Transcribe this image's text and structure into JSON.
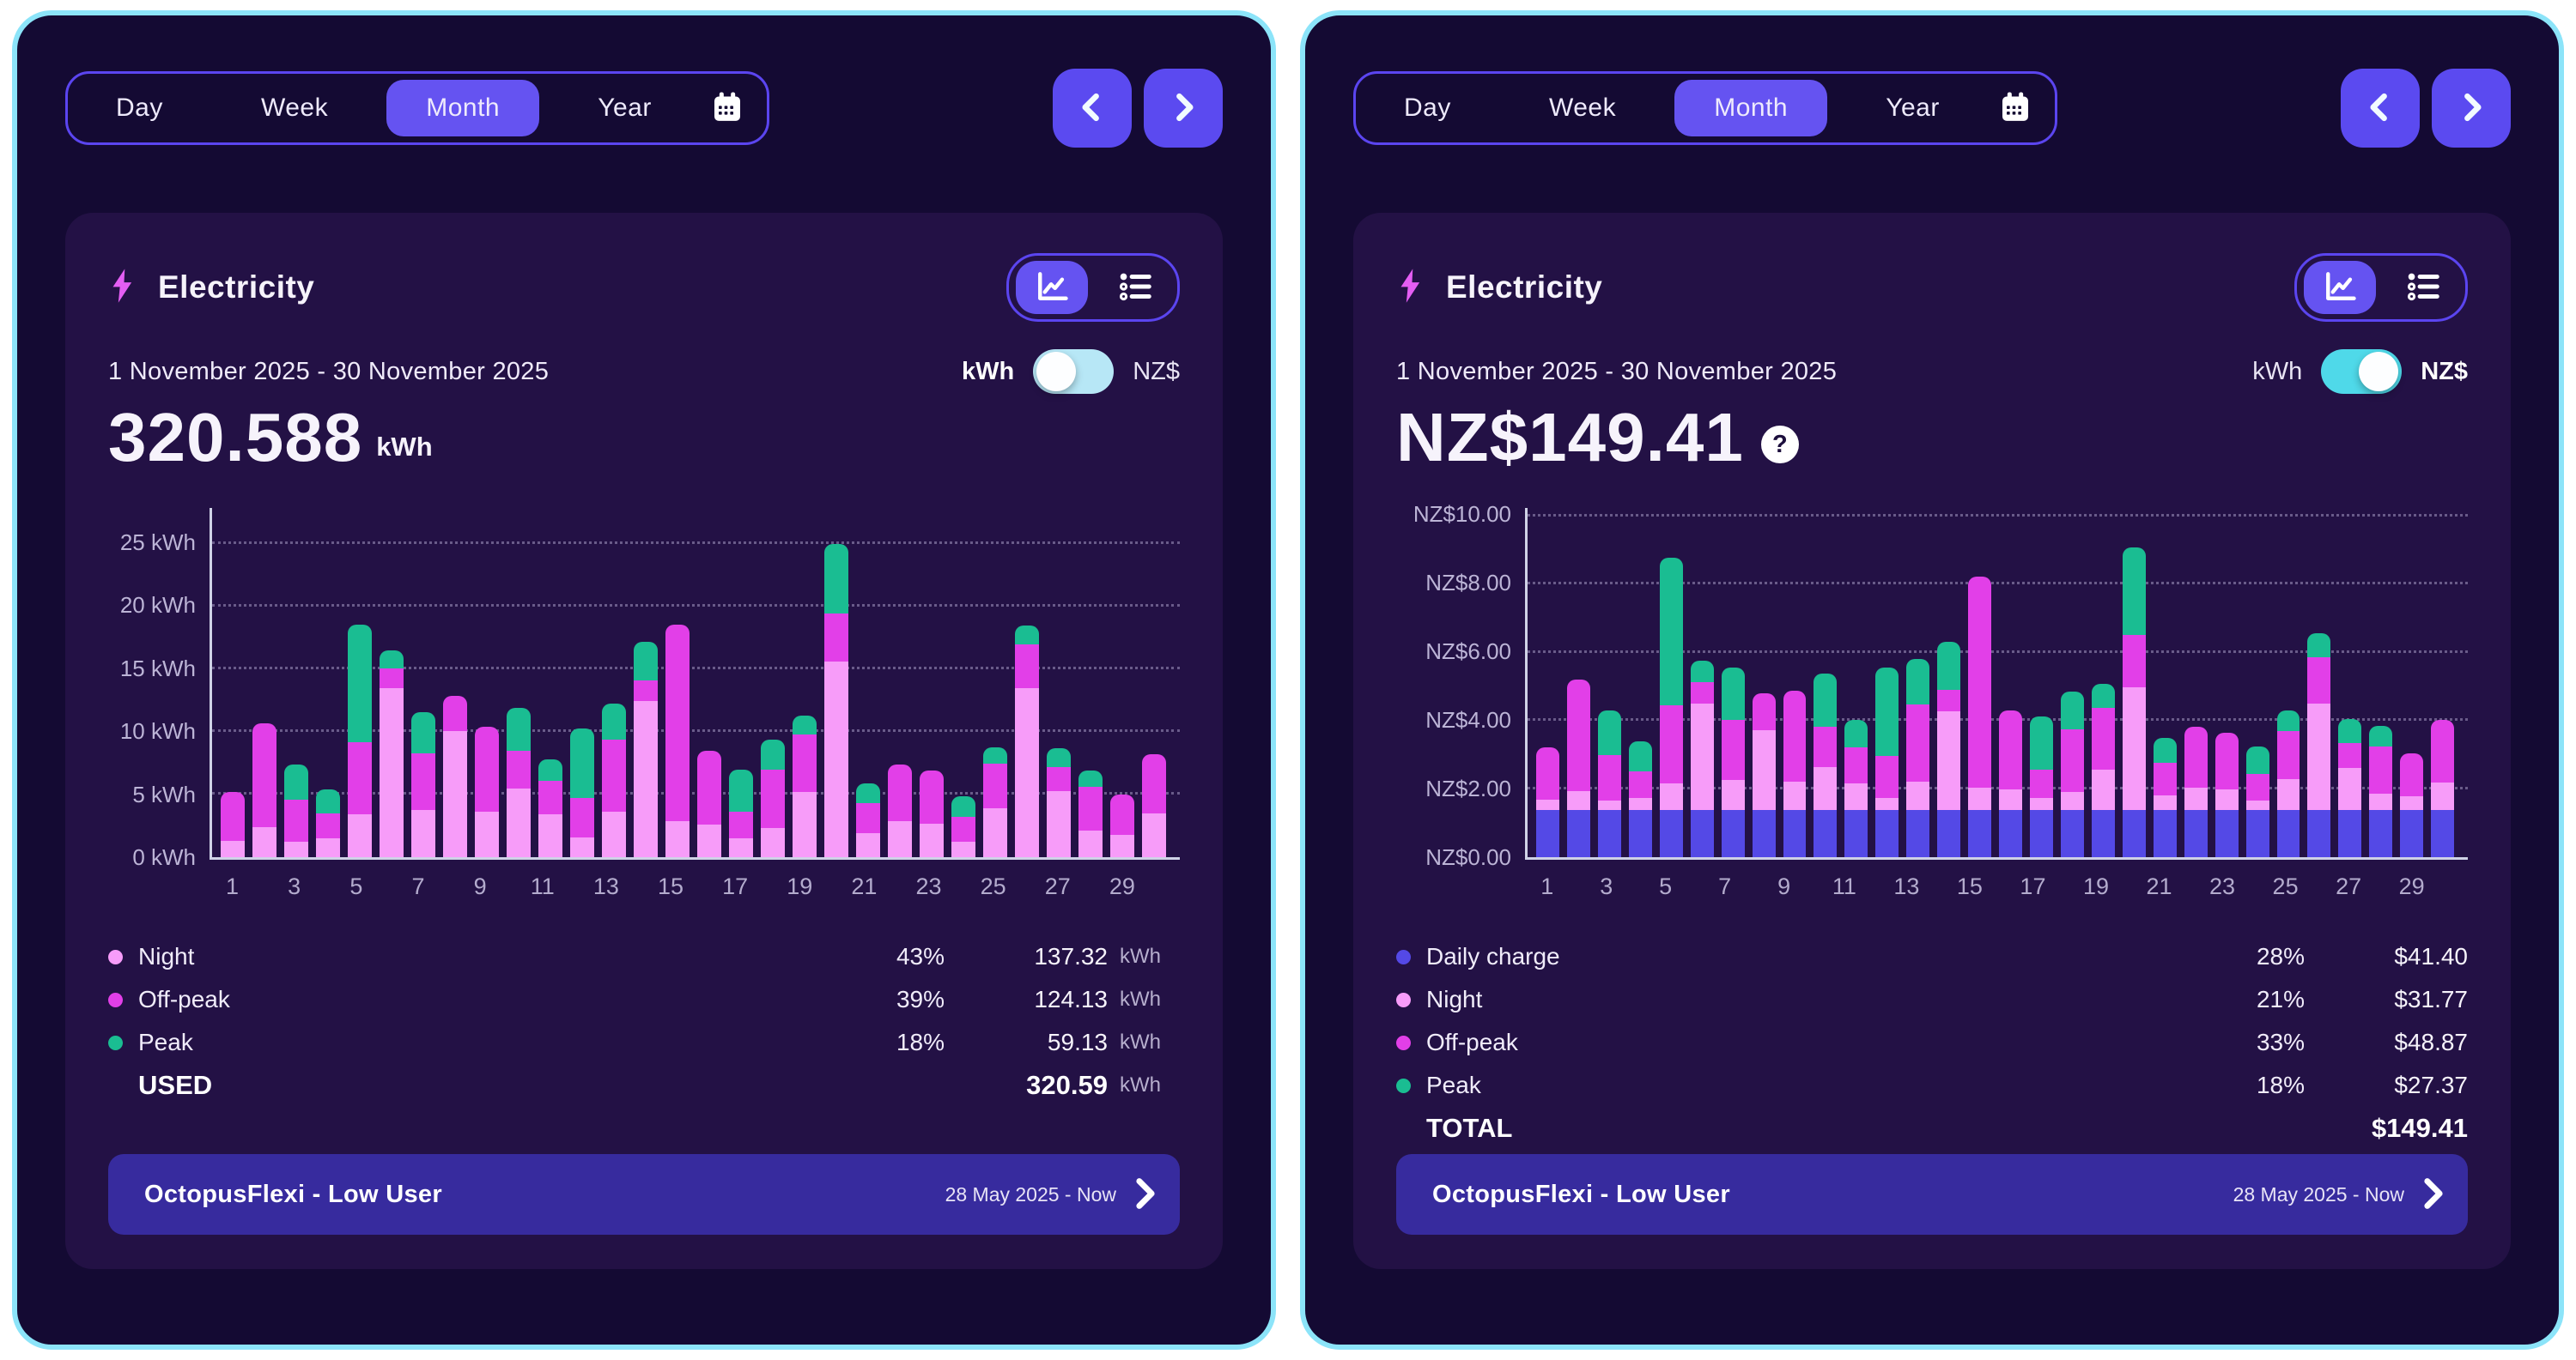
{
  "panels": [
    {
      "tabs": [
        {
          "label": "Day"
        },
        {
          "label": "Week"
        },
        {
          "label": "Month"
        },
        {
          "label": "Year"
        }
      ],
      "active_tab": "Month",
      "title": "Electricity",
      "period": "1 November 2025 - 30 November 2025",
      "unit_toggle": {
        "kwh": "kWh",
        "nzd": "NZ$",
        "active": "kWh"
      },
      "headline": {
        "value": "320.588",
        "unit": "kWh"
      },
      "legend": [
        {
          "label": "Night",
          "percent": "43%",
          "value": "137.32",
          "unit": "kWh",
          "color": "#f79cf9"
        },
        {
          "label": "Off-peak",
          "percent": "39%",
          "value": "124.13",
          "unit": "kWh",
          "color": "#e23fe8"
        },
        {
          "label": "Peak",
          "percent": "18%",
          "value": "59.13",
          "unit": "kWh",
          "color": "#1abd92"
        }
      ],
      "total": {
        "label": "USED",
        "value": "320.59",
        "unit": "kWh"
      },
      "plan": {
        "name": "OctopusFlexi - Low User",
        "range": "28 May 2025 - Now"
      }
    },
    {
      "tabs": [
        {
          "label": "Day"
        },
        {
          "label": "Week"
        },
        {
          "label": "Month"
        },
        {
          "label": "Year"
        }
      ],
      "active_tab": "Month",
      "title": "Electricity",
      "period": "1 November 2025 - 30 November 2025",
      "unit_toggle": {
        "kwh": "kWh",
        "nzd": "NZ$",
        "active": "NZ$"
      },
      "headline": {
        "value": "NZ$149.41",
        "help": "?"
      },
      "legend": [
        {
          "label": "Daily charge",
          "percent": "28%",
          "value": "$41.40",
          "color": "#5449e6"
        },
        {
          "label": "Night",
          "percent": "21%",
          "value": "$31.77",
          "color": "#f79cf9"
        },
        {
          "label": "Off-peak",
          "percent": "33%",
          "value": "$48.87",
          "color": "#e23fe8"
        },
        {
          "label": "Peak",
          "percent": "18%",
          "value": "$27.37",
          "color": "#1abd92"
        }
      ],
      "total": {
        "label": "TOTAL",
        "value": "$149.41"
      },
      "plan": {
        "name": "OctopusFlexi - Low User",
        "range": "28 May 2025 - Now"
      }
    }
  ],
  "chart_data": [
    {
      "type": "bar",
      "stacked": true,
      "title": "Electricity usage by day (kWh), 1-30 November 2025",
      "x": [
        1,
        2,
        3,
        4,
        5,
        6,
        7,
        8,
        9,
        10,
        11,
        12,
        13,
        14,
        15,
        16,
        17,
        18,
        19,
        20,
        21,
        22,
        23,
        24,
        25,
        26,
        27,
        28,
        29,
        30
      ],
      "ymax": 27.9,
      "yticks": [
        {
          "value": 0,
          "label": "0 kWh"
        },
        {
          "value": 5,
          "label": "5 kWh"
        },
        {
          "value": 10,
          "label": "10 kWh"
        },
        {
          "value": 15,
          "label": "15 kWh"
        },
        {
          "value": 20,
          "label": "20 kWh"
        },
        {
          "value": 25,
          "label": "25 kWh"
        }
      ],
      "series": [
        {
          "name": "Night",
          "color": "#f79cf9",
          "values": [
            1.3,
            2.4,
            1.2,
            1.5,
            3.4,
            13.5,
            3.8,
            10.1,
            3.6,
            5.5,
            3.4,
            1.6,
            3.6,
            12.5,
            2.9,
            2.6,
            1.5,
            2.3,
            5.2,
            15.6,
            1.9,
            2.9,
            2.7,
            1.2,
            3.9,
            13.5,
            5.3,
            2.1,
            1.8,
            3.5
          ]
        },
        {
          "name": "Off-peak",
          "color": "#e23fe8",
          "values": [
            3.9,
            8.3,
            3.4,
            2.0,
            5.8,
            1.6,
            4.5,
            2.8,
            6.8,
            3.0,
            2.7,
            3.1,
            5.8,
            1.6,
            15.7,
            5.9,
            2.1,
            4.7,
            4.6,
            3.9,
            2.4,
            4.5,
            4.2,
            2.0,
            3.6,
            3.5,
            1.9,
            3.5,
            3.2,
            4.7
          ]
        },
        {
          "name": "Peak",
          "color": "#1abd92",
          "values": [
            0,
            0,
            2.8,
            1.9,
            9.4,
            1.4,
            3.3,
            0,
            0,
            3.4,
            1.7,
            5.6,
            2.9,
            3.1,
            0,
            0,
            3.4,
            2.4,
            1.5,
            5.5,
            1.6,
            0,
            0,
            1.7,
            1.3,
            1.5,
            1.5,
            1.3,
            0,
            0
          ]
        }
      ]
    },
    {
      "type": "bar",
      "stacked": true,
      "title": "Electricity cost by day (NZ$), 1-30 November 2025",
      "x": [
        1,
        2,
        3,
        4,
        5,
        6,
        7,
        8,
        9,
        10,
        11,
        12,
        13,
        14,
        15,
        16,
        17,
        18,
        19,
        20,
        21,
        22,
        23,
        24,
        25,
        26,
        27,
        28,
        29,
        30
      ],
      "ymax": 10.25,
      "yticks": [
        {
          "value": 0,
          "label": "NZ$0.00"
        },
        {
          "value": 2,
          "label": "NZ$2.00"
        },
        {
          "value": 4,
          "label": "NZ$4.00"
        },
        {
          "value": 6,
          "label": "NZ$6.00"
        },
        {
          "value": 8,
          "label": "NZ$8.00"
        },
        {
          "value": 10,
          "label": "NZ$10.00"
        }
      ],
      "series": [
        {
          "name": "Daily charge",
          "color": "#5449e6",
          "values": [
            1.38,
            1.38,
            1.38,
            1.38,
            1.38,
            1.38,
            1.38,
            1.38,
            1.38,
            1.38,
            1.38,
            1.38,
            1.38,
            1.38,
            1.38,
            1.38,
            1.38,
            1.38,
            1.38,
            1.38,
            1.38,
            1.38,
            1.38,
            1.38,
            1.38,
            1.38,
            1.38,
            1.38,
            1.38,
            1.38
          ]
        },
        {
          "name": "Night",
          "color": "#f79cf9",
          "values": [
            0.3,
            0.56,
            0.28,
            0.35,
            0.79,
            3.12,
            0.88,
            2.34,
            0.83,
            1.27,
            0.79,
            0.37,
            0.83,
            2.89,
            0.67,
            0.6,
            0.35,
            0.53,
            1.2,
            3.61,
            0.44,
            0.67,
            0.62,
            0.28,
            0.9,
            3.12,
            1.23,
            0.49,
            0.42,
            0.81
          ]
        },
        {
          "name": "Off-peak",
          "color": "#e23fe8",
          "values": [
            1.54,
            3.27,
            1.34,
            0.79,
            2.28,
            0.63,
            1.77,
            1.1,
            2.68,
            1.18,
            1.06,
            1.22,
            2.28,
            0.63,
            6.18,
            2.32,
            0.83,
            1.85,
            1.81,
            1.54,
            0.94,
            1.77,
            1.65,
            0.79,
            1.42,
            1.38,
            0.75,
            1.38,
            1.26,
            1.85
          ]
        },
        {
          "name": "Peak",
          "color": "#1abd92",
          "values": [
            0,
            0,
            1.3,
            0.88,
            4.35,
            0.65,
            1.53,
            0,
            0,
            1.57,
            0.79,
            2.59,
            1.34,
            1.43,
            0,
            0,
            1.57,
            1.11,
            0.69,
            2.55,
            0.74,
            0,
            0,
            0.79,
            0.6,
            0.69,
            0.69,
            0.6,
            0,
            0
          ]
        }
      ]
    }
  ]
}
